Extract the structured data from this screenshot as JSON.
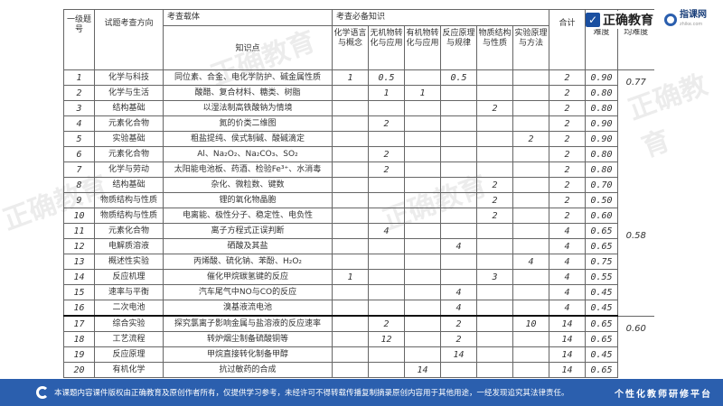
{
  "header": {
    "col_no": "一级题号",
    "col_direction": "试题考查方向",
    "col_carrier": "考查载体",
    "col_knowledge_point": "知识点",
    "col_required": "考查必备知识",
    "sub_cols": [
      "化学语言与概念",
      "无机物转化与应用",
      "有机物转化与应用",
      "反应原理与规律",
      "物质结构与性质",
      "实验原理与方法"
    ],
    "col_total": "合计",
    "col_difficulty": "难度",
    "col_avg": "均难度"
  },
  "rows": [
    {
      "no": "1",
      "dir": "化学与科技",
      "kp": "同位素、合金、电化学防护、碱金属性质",
      "k": [
        "1",
        "0.5",
        "",
        "0.5",
        "",
        ""
      ],
      "total": "2",
      "diff": "0.90"
    },
    {
      "no": "2",
      "dir": "化学与生活",
      "kp": "酸醋、复合材料、糖类、树脂",
      "k": [
        "",
        "1",
        "1",
        "",
        "",
        ""
      ],
      "total": "2",
      "diff": "0.80"
    },
    {
      "no": "3",
      "dir": "结构基础",
      "kp": "以湿法制高铁酸钠为情境",
      "k": [
        "",
        "",
        "",
        "",
        "2",
        ""
      ],
      "total": "2",
      "diff": "0.80"
    },
    {
      "no": "4",
      "dir": "元素化合物",
      "kp": "氮的价类二维图",
      "k": [
        "",
        "2",
        "",
        "",
        "",
        ""
      ],
      "total": "2",
      "diff": "0.90"
    },
    {
      "no": "5",
      "dir": "实验基础",
      "kp": "粗盐提纯、侯式制碱、酸碱滴定",
      "k": [
        "",
        "",
        "",
        "",
        "",
        "2"
      ],
      "total": "2",
      "diff": "0.90"
    },
    {
      "no": "6",
      "dir": "元素化合物",
      "kp": "Al、Na₂O₂、Na₂CO₃、SO₂",
      "k": [
        "",
        "2",
        "",
        "",
        "",
        ""
      ],
      "total": "2",
      "diff": "0.80"
    },
    {
      "no": "7",
      "dir": "化学与劳动",
      "kp": "太阳能电池板、药酒、检验Fe³⁺、水消毒",
      "k": [
        "",
        "2",
        "",
        "",
        "",
        ""
      ],
      "total": "2",
      "diff": "0.80"
    },
    {
      "no": "8",
      "dir": "结构基础",
      "kp": "杂化、微粒数、键数",
      "k": [
        "",
        "",
        "",
        "",
        "2",
        ""
      ],
      "total": "2",
      "diff": "0.70"
    },
    {
      "no": "9",
      "dir": "物质结构与性质",
      "kp": "锂的氧化物晶胞",
      "k": [
        "",
        "",
        "",
        "",
        "2",
        ""
      ],
      "total": "2",
      "diff": "0.50"
    },
    {
      "no": "10",
      "dir": "物质结构与性质",
      "kp": "电离能、极性分子、稳定性、电负性",
      "k": [
        "",
        "",
        "",
        "",
        "2",
        ""
      ],
      "total": "2",
      "diff": "0.60"
    },
    {
      "no": "11",
      "dir": "元素化合物",
      "kp": "离子方程式正误判断",
      "k": [
        "",
        "4",
        "",
        "",
        "",
        ""
      ],
      "total": "4",
      "diff": "0.65"
    },
    {
      "no": "12",
      "dir": "电解质溶液",
      "kp": "硒酸及其盐",
      "k": [
        "",
        "",
        "",
        "4",
        "",
        ""
      ],
      "total": "4",
      "diff": "0.65"
    },
    {
      "no": "13",
      "dir": "概述性实验",
      "kp": "丙烯酸、硫化钠、苯酚、H₂O₂",
      "k": [
        "",
        "",
        "",
        "",
        "",
        "4"
      ],
      "total": "4",
      "diff": "0.75"
    },
    {
      "no": "14",
      "dir": "反应机理",
      "kp": "催化甲烷碳氢键的反应",
      "k": [
        "1",
        "",
        "",
        "",
        "3",
        ""
      ],
      "total": "4",
      "diff": "0.55"
    },
    {
      "no": "15",
      "dir": "速率与平衡",
      "kp": "汽车尾气中NO与CO的反应",
      "k": [
        "",
        "",
        "",
        "4",
        "",
        ""
      ],
      "total": "4",
      "diff": "0.45"
    },
    {
      "no": "16",
      "dir": "二次电池",
      "kp": "溴基液流电池",
      "k": [
        "",
        "",
        "",
        "4",
        "",
        ""
      ],
      "total": "4",
      "diff": "0.45"
    },
    {
      "no": "17",
      "dir": "综合实验",
      "kp": "探究氯离子影响金属与盐溶液的反应速率",
      "k": [
        "",
        "2",
        "",
        "2",
        "",
        "10"
      ],
      "total": "14",
      "diff": "0.65"
    },
    {
      "no": "18",
      "dir": "工艺流程",
      "kp": "转炉烟尘制备硫酸铜等",
      "k": [
        "",
        "12",
        "",
        "2",
        "",
        ""
      ],
      "total": "14",
      "diff": "0.65"
    },
    {
      "no": "19",
      "dir": "反应原理",
      "kp": "甲烷直接转化制备甲醇",
      "k": [
        "",
        "",
        "",
        "14",
        "",
        ""
      ],
      "total": "14",
      "diff": "0.45"
    },
    {
      "no": "20",
      "dir": "有机化学",
      "kp": "抗过敏药的合成",
      "k": [
        "",
        "",
        "14",
        "",
        "",
        ""
      ],
      "total": "14",
      "diff": "0.65"
    }
  ],
  "averages": [
    "0.77",
    "0.58",
    "0.60"
  ],
  "logos": {
    "brand1": "正确教育",
    "brand2": "指课网",
    "brand2_sub": "zhike.com"
  },
  "watermark": "正确教育",
  "footer": {
    "notice": "本课题内容课件版权由正确教育及原创作者所有，仅提供学习参考，未经许可不得转载传播复制摘录原创内容用于其他用途，一经发现追究其法律责任。",
    "platform": "个性化教师研修平台"
  },
  "colors": {
    "footer_bg": "#2b5fae",
    "brand_blue": "#1a4fa0"
  }
}
